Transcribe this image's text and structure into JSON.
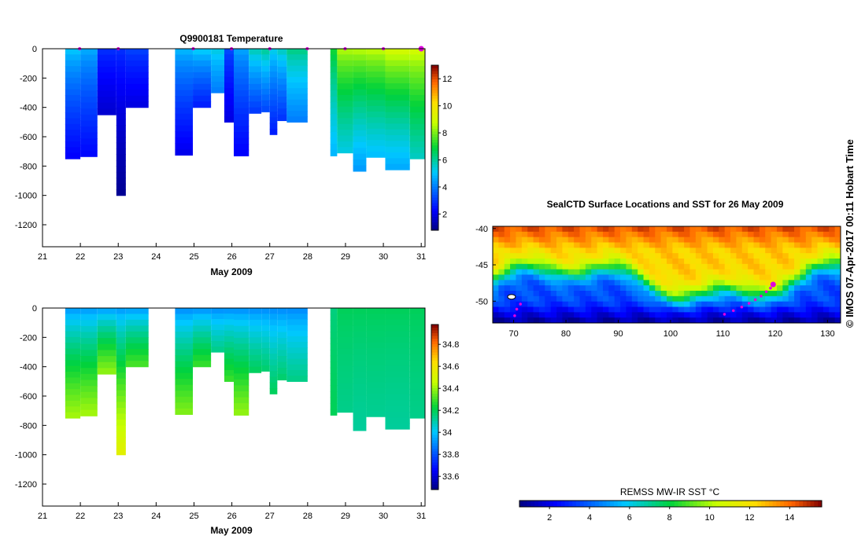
{
  "side_label": "© IMOS 07-Apr-2017 00:11 Hobart Time",
  "chart_data": [
    {
      "type": "heatmap",
      "variable": "temperature",
      "title": "Q9900181  Temperature",
      "xlabel": "May 2009",
      "ylabel": "",
      "xlim": [
        21,
        31.1
      ],
      "ylim": [
        -1350,
        0
      ],
      "x_ticks": [
        21,
        22,
        23,
        24,
        25,
        26,
        27,
        28,
        29,
        30,
        31
      ],
      "y_ticks": [
        0,
        -200,
        -400,
        -600,
        -800,
        -1000,
        -1200
      ],
      "colorbar": {
        "min": 0.8,
        "max": 13.0,
        "ticks": [
          2,
          4,
          6,
          8,
          10,
          12
        ]
      },
      "surface_markers_day": [
        21.98,
        23.0,
        24.98,
        25.99,
        27.0,
        27.99,
        28.99,
        30.0,
        31.0
      ],
      "profiles": [
        {
          "start": 21.6,
          "end": 22.0,
          "bottom": 750,
          "top_value": 5.2,
          "bottom_value": 2.2
        },
        {
          "start": 22.0,
          "end": 22.45,
          "bottom": 735,
          "top_value": 4.8,
          "bottom_value": 2.3
        },
        {
          "start": 22.45,
          "end": 22.95,
          "bottom": 450,
          "top_value": 3.0,
          "bottom_value": 1.7
        },
        {
          "start": 22.95,
          "end": 23.2,
          "bottom": 1000,
          "top_value": 3.0,
          "bottom_value": 1.0
        },
        {
          "start": 23.2,
          "end": 23.8,
          "bottom": 400,
          "top_value": 3.3,
          "bottom_value": 1.9
        },
        {
          "start": 24.5,
          "end": 24.97,
          "bottom": 725,
          "top_value": 5.0,
          "bottom_value": 2.0
        },
        {
          "start": 24.97,
          "end": 25.45,
          "bottom": 400,
          "top_value": 5.4,
          "bottom_value": 2.6
        },
        {
          "start": 25.45,
          "end": 25.8,
          "bottom": 300,
          "top_value": 5.5,
          "bottom_value": 4.0
        },
        {
          "start": 25.8,
          "end": 26.05,
          "bottom": 500,
          "top_value": 3.4,
          "bottom_value": 1.9
        },
        {
          "start": 26.05,
          "end": 26.45,
          "bottom": 730,
          "top_value": 4.7,
          "bottom_value": 2.2
        },
        {
          "start": 26.45,
          "end": 26.78,
          "bottom": 440,
          "top_value": 6.0,
          "bottom_value": 3.0
        },
        {
          "start": 26.78,
          "end": 27.0,
          "bottom": 430,
          "top_value": 6.3,
          "bottom_value": 3.2
        },
        {
          "start": 27.0,
          "end": 27.2,
          "bottom": 585,
          "top_value": 5.5,
          "bottom_value": 2.6
        },
        {
          "start": 27.2,
          "end": 27.45,
          "bottom": 490,
          "top_value": 5.9,
          "bottom_value": 2.9
        },
        {
          "start": 27.45,
          "end": 28.0,
          "bottom": 500,
          "top_value": 6.4,
          "bottom_value": 4.0
        },
        {
          "start": 28.6,
          "end": 28.78,
          "bottom": 730,
          "top_value": 7.2,
          "bottom_value": 4.8
        },
        {
          "start": 28.78,
          "end": 29.2,
          "bottom": 710,
          "top_value": 8.7,
          "bottom_value": 5.3
        },
        {
          "start": 29.2,
          "end": 29.55,
          "bottom": 835,
          "top_value": 8.8,
          "bottom_value": 4.4
        },
        {
          "start": 29.55,
          "end": 30.05,
          "bottom": 740,
          "top_value": 8.9,
          "bottom_value": 4.9
        },
        {
          "start": 30.05,
          "end": 30.7,
          "bottom": 825,
          "top_value": 9.3,
          "bottom_value": 4.6
        },
        {
          "start": 30.7,
          "end": 31.1,
          "bottom": 750,
          "top_value": 9.2,
          "bottom_value": 5.6
        }
      ]
    },
    {
      "type": "heatmap",
      "variable": "salinity",
      "title": "",
      "xlabel": "May 2009",
      "ylabel": "",
      "xlim": [
        21,
        31.1
      ],
      "ylim": [
        -1350,
        0
      ],
      "x_ticks": [
        21,
        22,
        23,
        24,
        25,
        26,
        27,
        28,
        29,
        30,
        31
      ],
      "y_ticks": [
        0,
        -200,
        -400,
        -600,
        -800,
        -1000,
        -1200
      ],
      "colorbar": {
        "min": 33.48,
        "max": 34.98,
        "ticks": [
          33.6,
          33.8,
          34,
          34.2,
          34.4,
          34.6,
          34.8
        ]
      },
      "profiles": [
        {
          "start": 21.6,
          "end": 22.0,
          "bottom": 750,
          "top_value": 33.9,
          "bottom_value": 34.42
        },
        {
          "start": 22.0,
          "end": 22.45,
          "bottom": 735,
          "top_value": 33.9,
          "bottom_value": 34.42
        },
        {
          "start": 22.45,
          "end": 22.95,
          "bottom": 450,
          "top_value": 33.9,
          "bottom_value": 34.4
        },
        {
          "start": 22.95,
          "end": 23.2,
          "bottom": 1000,
          "top_value": 33.9,
          "bottom_value": 34.55
        },
        {
          "start": 23.2,
          "end": 23.8,
          "bottom": 400,
          "top_value": 33.9,
          "bottom_value": 34.32
        },
        {
          "start": 24.5,
          "end": 24.97,
          "bottom": 725,
          "top_value": 33.88,
          "bottom_value": 34.38
        },
        {
          "start": 24.97,
          "end": 25.45,
          "bottom": 400,
          "top_value": 33.88,
          "bottom_value": 34.3
        },
        {
          "start": 25.45,
          "end": 25.8,
          "bottom": 300,
          "top_value": 33.88,
          "bottom_value": 34.15
        },
        {
          "start": 25.8,
          "end": 26.05,
          "bottom": 500,
          "top_value": 33.88,
          "bottom_value": 34.3
        },
        {
          "start": 26.05,
          "end": 26.45,
          "bottom": 730,
          "top_value": 33.88,
          "bottom_value": 34.4
        },
        {
          "start": 26.45,
          "end": 26.78,
          "bottom": 440,
          "top_value": 33.88,
          "bottom_value": 34.2
        },
        {
          "start": 26.78,
          "end": 27.0,
          "bottom": 430,
          "top_value": 33.88,
          "bottom_value": 34.18
        },
        {
          "start": 27.0,
          "end": 27.2,
          "bottom": 585,
          "top_value": 33.88,
          "bottom_value": 34.2
        },
        {
          "start": 27.2,
          "end": 27.45,
          "bottom": 490,
          "top_value": 33.88,
          "bottom_value": 34.18
        },
        {
          "start": 27.45,
          "end": 28.0,
          "bottom": 500,
          "top_value": 33.88,
          "bottom_value": 34.15
        },
        {
          "start": 28.6,
          "end": 28.78,
          "bottom": 730,
          "top_value": 34.15,
          "bottom_value": 34.2
        },
        {
          "start": 28.78,
          "end": 29.2,
          "bottom": 710,
          "top_value": 34.2,
          "bottom_value": 34.14
        },
        {
          "start": 29.2,
          "end": 29.55,
          "bottom": 835,
          "top_value": 34.2,
          "bottom_value": 34.12
        },
        {
          "start": 29.55,
          "end": 30.05,
          "bottom": 740,
          "top_value": 34.2,
          "bottom_value": 34.13
        },
        {
          "start": 30.05,
          "end": 30.7,
          "bottom": 825,
          "top_value": 34.2,
          "bottom_value": 34.12
        },
        {
          "start": 30.7,
          "end": 31.1,
          "bottom": 750,
          "top_value": 34.2,
          "bottom_value": 34.14
        }
      ]
    },
    {
      "type": "heatmap",
      "variable": "sst_map",
      "title": "SealCTD Surface Locations and SST for 26 May 2009",
      "xlabel": "",
      "ylabel": "",
      "xlim": [
        66,
        132.5
      ],
      "ylim": [
        -53,
        -39.7
      ],
      "x_ticks": [
        70,
        80,
        90,
        100,
        110,
        120,
        130
      ],
      "y_ticks": [
        -40,
        -45,
        -50
      ],
      "colorbar": {
        "label": "REMSS MW-IR SST °C",
        "min": 0.5,
        "max": 15.6,
        "ticks": [
          2,
          4,
          6,
          8,
          10,
          12,
          14
        ]
      },
      "track": [
        {
          "lon": 110.3,
          "lat": -51.8
        },
        {
          "lon": 112.0,
          "lat": -51.3
        },
        {
          "lon": 113.6,
          "lat": -50.8
        },
        {
          "lon": 115.0,
          "lat": -50.3
        },
        {
          "lon": 116.2,
          "lat": -49.8
        },
        {
          "lon": 117.3,
          "lat": -49.3
        },
        {
          "lon": 118.3,
          "lat": -48.7
        },
        {
          "lon": 119.1,
          "lat": -48.2
        },
        {
          "lon": 119.6,
          "lat": -47.7
        },
        {
          "lon": 70.2,
          "lat": -52.0
        },
        {
          "lon": 70.6,
          "lat": -51.1
        },
        {
          "lon": 71.3,
          "lat": -50.4
        }
      ]
    }
  ]
}
